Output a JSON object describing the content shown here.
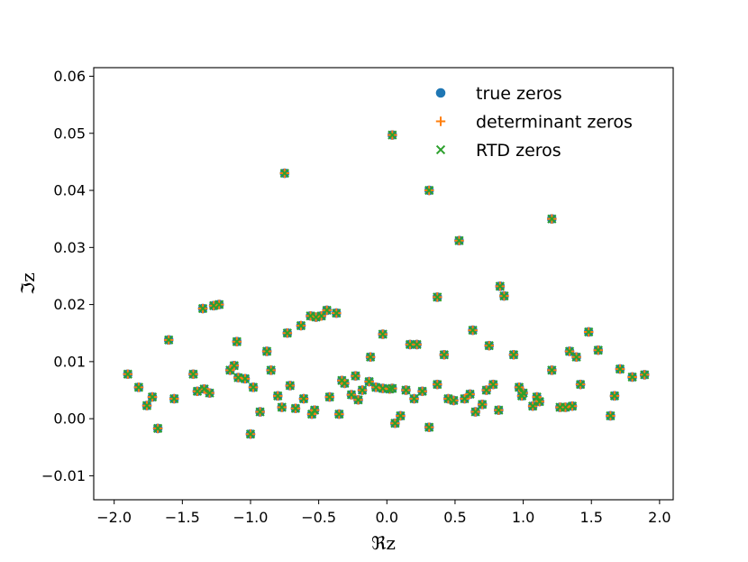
{
  "chart_data": {
    "type": "scatter",
    "xlabel": "ℜz",
    "ylabel": "ℑz",
    "xlim": [
      -2.15,
      2.1
    ],
    "ylim": [
      -0.0142,
      0.0615
    ],
    "xticks": [
      -2.0,
      -1.5,
      -1.0,
      -0.5,
      0.0,
      0.5,
      1.0,
      1.5,
      2.0
    ],
    "xtick_labels": [
      "−2.0",
      "−1.5",
      "−1.0",
      "−0.5",
      "0.0",
      "0.5",
      "1.0",
      "1.5",
      "2.0"
    ],
    "yticks": [
      -0.01,
      0.0,
      0.01,
      0.02,
      0.03,
      0.04,
      0.05,
      0.06
    ],
    "ytick_labels": [
      "−0.01",
      "0.00",
      "0.01",
      "0.02",
      "0.03",
      "0.04",
      "0.05",
      "0.06"
    ],
    "grid": false,
    "legend_position": "top-right",
    "colors": {
      "true": "#1f77b4",
      "det": "#ff7f0e",
      "rtd": "#2ca02c"
    },
    "series": [
      {
        "name": "true zeros",
        "marker": "circle"
      },
      {
        "name": "determinant zeros",
        "marker": "plus"
      },
      {
        "name": "RTD zeros",
        "marker": "x"
      }
    ],
    "points": [
      [
        -1.9,
        0.0078
      ],
      [
        -1.82,
        0.0055
      ],
      [
        -1.76,
        0.0023
      ],
      [
        -1.72,
        0.0038
      ],
      [
        -1.68,
        -0.0017
      ],
      [
        -1.6,
        0.0138
      ],
      [
        -1.56,
        0.0035
      ],
      [
        -1.42,
        0.0078
      ],
      [
        -1.39,
        0.0048
      ],
      [
        -1.35,
        0.0193
      ],
      [
        -1.34,
        0.0052
      ],
      [
        -1.3,
        0.0045
      ],
      [
        -1.27,
        0.0198
      ],
      [
        -1.23,
        0.02
      ],
      [
        -1.15,
        0.0085
      ],
      [
        -1.12,
        0.0093
      ],
      [
        -1.1,
        0.0135
      ],
      [
        -1.09,
        0.0072
      ],
      [
        -1.04,
        0.007
      ],
      [
        -0.98,
        0.0055
      ],
      [
        -1.0,
        -0.0027
      ],
      [
        -0.93,
        0.0012
      ],
      [
        -0.88,
        0.0118
      ],
      [
        -0.85,
        0.0085
      ],
      [
        -0.8,
        0.004
      ],
      [
        -0.77,
        0.002
      ],
      [
        -0.75,
        0.043
      ],
      [
        -0.73,
        0.015
      ],
      [
        -0.71,
        0.0058
      ],
      [
        -0.67,
        0.0018
      ],
      [
        -0.63,
        0.0163
      ],
      [
        -0.61,
        0.0035
      ],
      [
        -0.56,
        0.018
      ],
      [
        -0.55,
        0.0008
      ],
      [
        -0.53,
        0.0015
      ],
      [
        -0.52,
        0.0178
      ],
      [
        -0.48,
        0.018
      ],
      [
        -0.44,
        0.019
      ],
      [
        -0.42,
        0.0038
      ],
      [
        -0.37,
        0.0185
      ],
      [
        -0.35,
        0.0008
      ],
      [
        -0.33,
        0.0067
      ],
      [
        -0.31,
        0.0062
      ],
      [
        -0.26,
        0.0042
      ],
      [
        -0.23,
        0.0075
      ],
      [
        -0.21,
        0.0033
      ],
      [
        -0.18,
        0.005
      ],
      [
        -0.12,
        0.0108
      ],
      [
        -0.13,
        0.0065
      ],
      [
        -0.08,
        0.0055
      ],
      [
        -0.03,
        0.0148
      ],
      [
        -0.03,
        0.0053
      ],
      [
        0.02,
        0.0052
      ],
      [
        0.04,
        0.0053
      ],
      [
        0.04,
        0.0497
      ],
      [
        0.06,
        -0.0008
      ],
      [
        0.1,
        0.0005
      ],
      [
        0.14,
        0.005
      ],
      [
        0.17,
        0.013
      ],
      [
        0.2,
        0.0035
      ],
      [
        0.22,
        0.013
      ],
      [
        0.26,
        0.0048
      ],
      [
        0.31,
        0.04
      ],
      [
        0.31,
        -0.0015
      ],
      [
        0.37,
        0.006
      ],
      [
        0.37,
        0.0213
      ],
      [
        0.42,
        0.0112
      ],
      [
        0.45,
        0.0035
      ],
      [
        0.49,
        0.0032
      ],
      [
        0.53,
        0.0312
      ],
      [
        0.57,
        0.0035
      ],
      [
        0.61,
        0.0043
      ],
      [
        0.63,
        0.0155
      ],
      [
        0.65,
        0.0012
      ],
      [
        0.7,
        0.0025
      ],
      [
        0.73,
        0.005
      ],
      [
        0.75,
        0.0128
      ],
      [
        0.78,
        0.006
      ],
      [
        0.82,
        0.0015
      ],
      [
        0.83,
        0.0232
      ],
      [
        0.86,
        0.0215
      ],
      [
        0.93,
        0.0112
      ],
      [
        0.97,
        0.0055
      ],
      [
        1.0,
        0.0045
      ],
      [
        0.99,
        0.004
      ],
      [
        1.07,
        0.0022
      ],
      [
        1.1,
        0.0038
      ],
      [
        1.12,
        0.003
      ],
      [
        1.21,
        0.0085
      ],
      [
        1.21,
        0.035
      ],
      [
        1.27,
        0.002
      ],
      [
        1.31,
        0.002
      ],
      [
        1.34,
        0.0118
      ],
      [
        1.36,
        0.0022
      ],
      [
        1.39,
        0.0108
      ],
      [
        1.42,
        0.006
      ],
      [
        1.48,
        0.0152
      ],
      [
        1.55,
        0.012
      ],
      [
        1.64,
        0.0005
      ],
      [
        1.67,
        0.004
      ],
      [
        1.71,
        0.0087
      ],
      [
        1.8,
        0.0073
      ],
      [
        1.89,
        0.0077
      ]
    ]
  }
}
